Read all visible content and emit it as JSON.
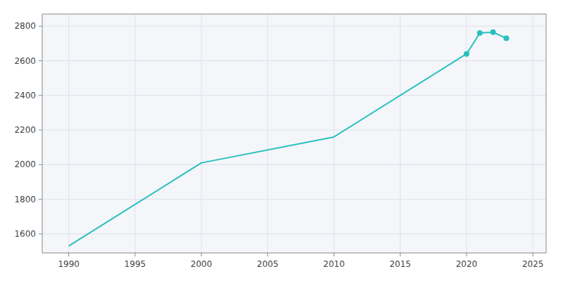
{
  "chart_data": {
    "type": "line",
    "x": [
      1990,
      2000,
      2010,
      2020,
      2021,
      2022,
      2023
    ],
    "series": [
      {
        "type": "line",
        "color": "#2ABFBF",
        "line_style": "solid",
        "values": [
          1530,
          2010,
          2160,
          2640,
          2760,
          2765,
          2730
        ]
      },
      {
        "type": "scatter",
        "color": "#2ABFBF",
        "marker": "circle",
        "x": [
          2020,
          2021,
          2022,
          2023
        ],
        "values": [
          2640,
          2760,
          2765,
          2730
        ]
      }
    ],
    "xlim": [
      1988,
      2026
    ],
    "ylim": [
      1490,
      2870
    ],
    "xticks": [
      1990,
      1995,
      2000,
      2005,
      2010,
      2015,
      2020,
      2025
    ],
    "yticks": [
      1600,
      1800,
      2000,
      2200,
      2400,
      2600,
      2800
    ],
    "grid": true
  }
}
